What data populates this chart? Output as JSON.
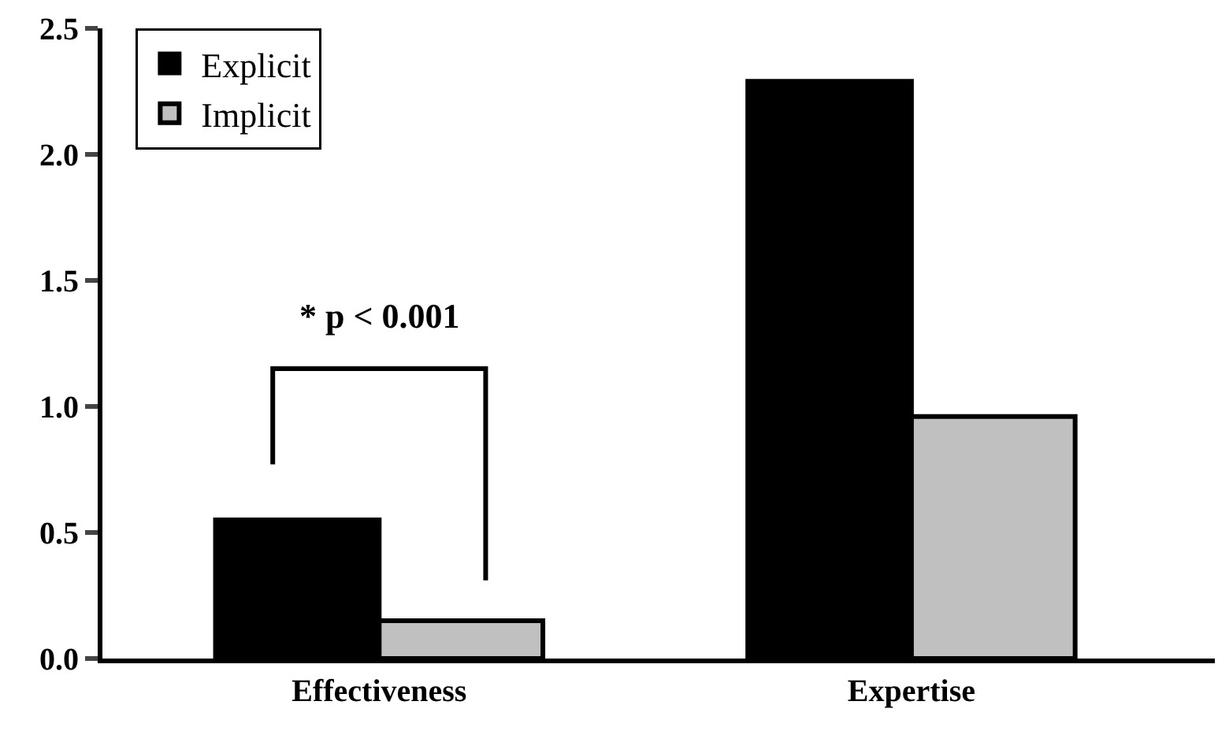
{
  "chart_data": {
    "type": "bar",
    "categories": [
      "Effectiveness",
      "Expertise"
    ],
    "series": [
      {
        "name": "Explicit",
        "color": "#000000",
        "values": [
          0.55,
          2.29
        ]
      },
      {
        "name": "Implicit",
        "color": "#c0c0c0",
        "values": [
          0.15,
          0.96
        ]
      }
    ],
    "ylim": [
      0,
      2.5
    ],
    "yticks": [
      {
        "value": 0,
        "label": "0.0"
      },
      {
        "value": 0.5,
        "label": "0.5"
      },
      {
        "value": 1,
        "label": "1.0"
      },
      {
        "value": 1.5,
        "label": "1.5"
      },
      {
        "value": 2,
        "label": "2.0"
      },
      {
        "value": 2.5,
        "label": "2.5"
      }
    ],
    "annotations": [
      "* p < 0.001"
    ],
    "legend": "top left"
  }
}
